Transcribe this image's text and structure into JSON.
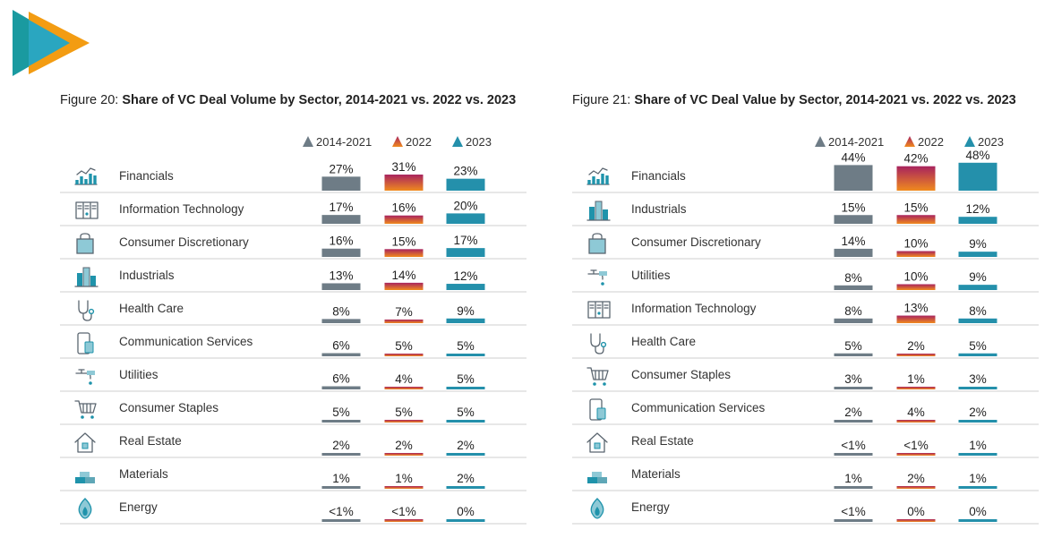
{
  "colors": {
    "series_2014_2021": "#6e7c86",
    "series_2022_top": "#a8235e",
    "series_2022_bottom": "#f08a1e",
    "series_2023": "#2490ab",
    "logo_teal": "#1a9aa0",
    "logo_orange": "#f39c12",
    "rule": "#cfcfcf"
  },
  "chart_data": [
    {
      "type": "bar",
      "figure_label": "Figure 20: ",
      "title": "Share of VC Deal Volume by Sector, 2014-2021 vs. 2022 vs. 2023",
      "legend": [
        "2014-2021",
        "2022",
        "2023"
      ],
      "categories": [
        "Financials",
        "Information Technology",
        "Consumer Discretionary",
        "Industrials",
        "Health Care",
        "Communication Services",
        "Utilities",
        "Consumer Staples",
        "Real Estate",
        "Materials",
        "Energy"
      ],
      "icons": [
        "chart-icon",
        "server-icon",
        "shopping-bag-icon",
        "buildings-icon",
        "stethoscope-icon",
        "phone-icon",
        "faucet-icon",
        "cart-icon",
        "house-icon",
        "bricks-icon",
        "flame-icon"
      ],
      "series": [
        {
          "name": "2014-2021",
          "values": [
            27,
            17,
            16,
            13,
            8,
            6,
            6,
            5,
            2,
            1,
            0.5
          ],
          "labels": [
            "27%",
            "17%",
            "16%",
            "13%",
            "8%",
            "6%",
            "6%",
            "5%",
            "2%",
            "1%",
            "<1%"
          ]
        },
        {
          "name": "2022",
          "values": [
            31,
            16,
            15,
            14,
            7,
            5,
            4,
            5,
            2,
            1,
            0.5
          ],
          "labels": [
            "31%",
            "16%",
            "15%",
            "14%",
            "7%",
            "5%",
            "4%",
            "5%",
            "2%",
            "1%",
            "<1%"
          ]
        },
        {
          "name": "2023",
          "values": [
            23,
            20,
            17,
            12,
            9,
            5,
            5,
            5,
            2,
            2,
            0
          ],
          "labels": [
            "23%",
            "20%",
            "17%",
            "12%",
            "9%",
            "5%",
            "5%",
            "5%",
            "2%",
            "2%",
            "0%"
          ]
        }
      ]
    },
    {
      "type": "bar",
      "figure_label": "Figure 21: ",
      "title": "Share of VC Deal Value by Sector, 2014-2021 vs. 2022 vs. 2023",
      "legend": [
        "2014-2021",
        "2022",
        "2023"
      ],
      "categories": [
        "Financials",
        "Industrials",
        "Consumer Discretionary",
        "Utilities",
        "Information Technology",
        "Health Care",
        "Consumer Staples",
        "Communication Services",
        "Real Estate",
        "Materials",
        "Energy"
      ],
      "icons": [
        "chart-icon",
        "buildings-icon",
        "shopping-bag-icon",
        "faucet-icon",
        "server-icon",
        "stethoscope-icon",
        "cart-icon",
        "phone-icon",
        "house-icon",
        "bricks-icon",
        "flame-icon"
      ],
      "series": [
        {
          "name": "2014-2021",
          "values": [
            44,
            15,
            14,
            8,
            8,
            5,
            3,
            2,
            0.5,
            1,
            0.5
          ],
          "labels": [
            "44%",
            "15%",
            "14%",
            "8%",
            "8%",
            "5%",
            "3%",
            "2%",
            "<1%",
            "1%",
            "<1%"
          ]
        },
        {
          "name": "2022",
          "values": [
            42,
            15,
            10,
            10,
            13,
            2,
            1,
            4,
            0.5,
            2,
            0
          ],
          "labels": [
            "42%",
            "15%",
            "10%",
            "10%",
            "13%",
            "2%",
            "1%",
            "4%",
            "<1%",
            "2%",
            "0%"
          ]
        },
        {
          "name": "2023",
          "values": [
            48,
            12,
            9,
            9,
            8,
            5,
            3,
            2,
            1,
            1,
            0
          ],
          "labels": [
            "48%",
            "12%",
            "9%",
            "9%",
            "8%",
            "5%",
            "3%",
            "2%",
            "1%",
            "1%",
            "0%"
          ]
        }
      ]
    }
  ]
}
